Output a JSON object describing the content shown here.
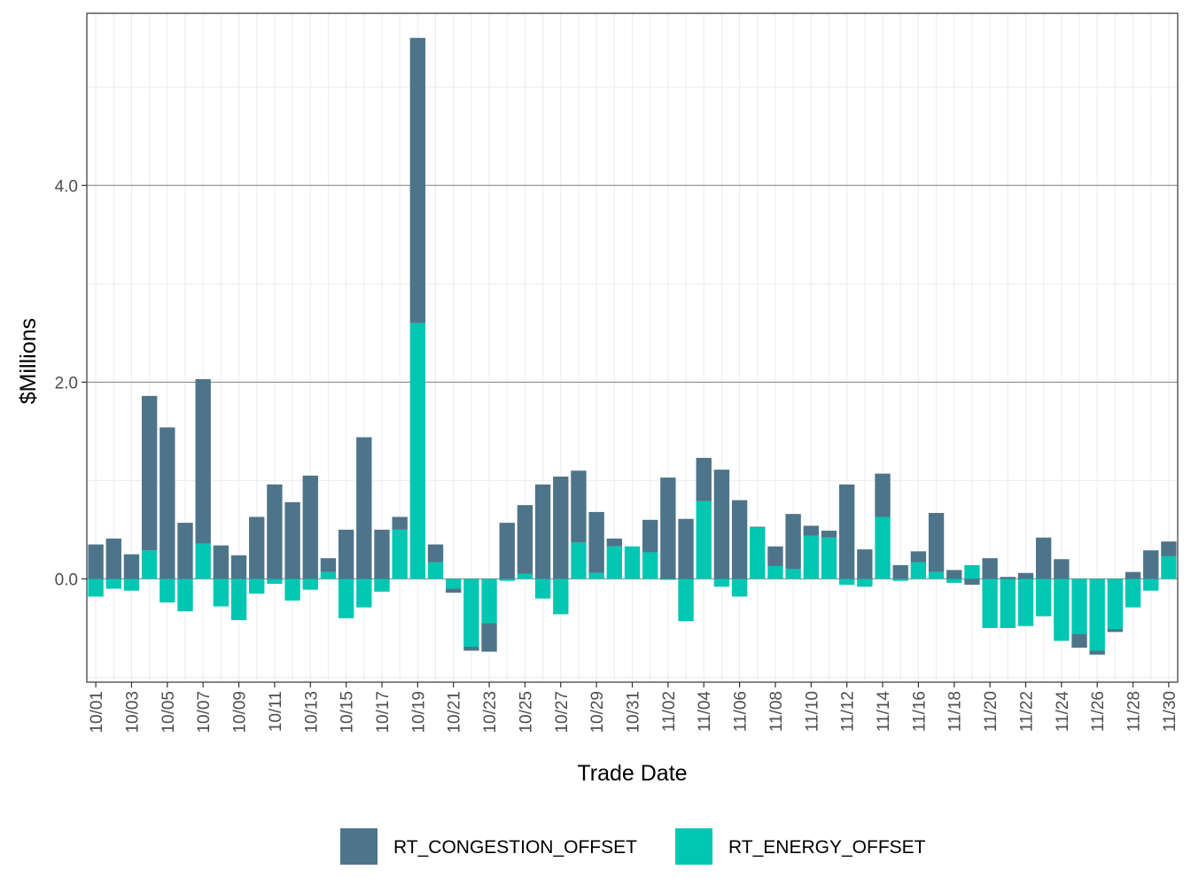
{
  "chart_data": {
    "type": "bar",
    "stacked": true,
    "xlabel": "Trade Date",
    "ylabel": "$Millions",
    "ylim": [
      -1.05,
      5.75
    ],
    "y_ticks": [
      0,
      2,
      4
    ],
    "y_tick_labels": [
      "0.0",
      "2.0",
      "4.0"
    ],
    "x_tick_labels": [
      "10/01",
      "10/03",
      "10/05",
      "10/07",
      "10/09",
      "10/11",
      "10/13",
      "10/15",
      "10/17",
      "10/19",
      "10/21",
      "10/23",
      "10/25",
      "10/27",
      "10/29",
      "10/31",
      "11/02",
      "11/04",
      "11/06",
      "11/08",
      "11/10",
      "11/12",
      "11/14",
      "11/16",
      "11/18",
      "11/20",
      "11/22",
      "11/24",
      "11/26",
      "11/28",
      "11/30"
    ],
    "grid": true,
    "legend_position": "bottom",
    "categories": [
      "10/01",
      "10/02",
      "10/03",
      "10/04",
      "10/05",
      "10/06",
      "10/07",
      "10/08",
      "10/09",
      "10/10",
      "10/11",
      "10/12",
      "10/13",
      "10/14",
      "10/15",
      "10/16",
      "10/17",
      "10/18",
      "10/19",
      "10/20",
      "10/21",
      "10/22",
      "10/23",
      "10/24",
      "10/25",
      "10/26",
      "10/27",
      "10/28",
      "10/29",
      "10/30",
      "10/31",
      "11/01",
      "11/02",
      "11/03",
      "11/04",
      "11/05",
      "11/06",
      "11/07",
      "11/08",
      "11/09",
      "11/10",
      "11/11",
      "11/12",
      "11/13",
      "11/14",
      "11/15",
      "11/16",
      "11/17",
      "11/18",
      "11/19",
      "11/20",
      "11/21",
      "11/22",
      "11/23",
      "11/24",
      "11/25",
      "11/26",
      "11/27",
      "11/28",
      "11/29",
      "11/30"
    ],
    "series": [
      {
        "name": "RT_CONGESTION_OFFSET",
        "color": "#4e7489",
        "values": [
          0.35,
          0.41,
          0.25,
          1.57,
          1.54,
          0.57,
          1.67,
          0.34,
          0.24,
          0.63,
          0.96,
          0.78,
          1.05,
          0.14,
          0.5,
          1.44,
          0.5,
          0.13,
          2.9,
          0.18,
          -0.04,
          -0.04,
          -0.29,
          0.57,
          0.7,
          0.96,
          1.04,
          0.73,
          0.62,
          0.08,
          0.0,
          0.33,
          1.03,
          0.61,
          0.44,
          1.11,
          0.8,
          0.01,
          0.2,
          0.56,
          0.1,
          0.07,
          0.96,
          0.3,
          0.44,
          0.14,
          0.11,
          0.6,
          0.09,
          -0.06,
          0.21,
          0.02,
          0.06,
          0.42,
          0.2,
          -0.14,
          -0.04,
          -0.03,
          0.07,
          0.29,
          0.15
        ],
        "label_note": ""
      },
      {
        "name": "RT_ENERGY_OFFSET",
        "color": "#00c7b2",
        "values": [
          -0.18,
          -0.1,
          -0.12,
          0.29,
          -0.24,
          -0.33,
          0.36,
          -0.28,
          -0.42,
          -0.15,
          -0.05,
          -0.22,
          -0.11,
          0.07,
          -0.4,
          -0.29,
          -0.13,
          0.5,
          2.6,
          0.17,
          -0.1,
          -0.69,
          -0.45,
          -0.02,
          0.05,
          -0.2,
          -0.36,
          0.37,
          0.06,
          0.33,
          0.33,
          0.27,
          -0.01,
          -0.43,
          0.79,
          -0.08,
          -0.18,
          0.52,
          0.13,
          0.1,
          0.44,
          0.42,
          -0.06,
          -0.08,
          0.63,
          -0.02,
          0.17,
          0.07,
          -0.04,
          0.14,
          -0.5,
          -0.5,
          -0.48,
          -0.38,
          -0.63,
          -0.56,
          -0.73,
          -0.51,
          -0.29,
          -0.12,
          0.23
        ]
      }
    ]
  }
}
